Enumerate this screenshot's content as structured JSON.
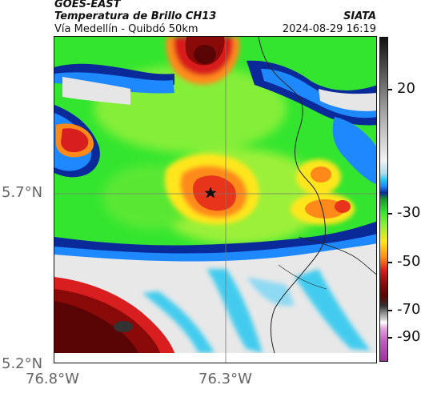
{
  "header": {
    "source": "GOES-EAST",
    "product": "Temperatura de Brillo CH13",
    "region": "Vía Medellín - Quibdó 50km",
    "org": "SIATA",
    "timestamp": "2024-08-29 16:19"
  },
  "axes": {
    "lat_labels": [
      "5.7°N",
      "5.2°N"
    ],
    "lon_labels": [
      "76.8°W",
      "76.3°W"
    ]
  },
  "colorbar": {
    "labels": [
      "20",
      "-30",
      "-50",
      "-70",
      "-90"
    ]
  },
  "colors": {
    "warm_green": "#2ee82e",
    "cold_white": "#e6e6e6",
    "blue": "#0b2a9a",
    "red": "#d81e1e",
    "dark_red": "#5a0505"
  },
  "marker": {
    "icon": "star-icon"
  }
}
